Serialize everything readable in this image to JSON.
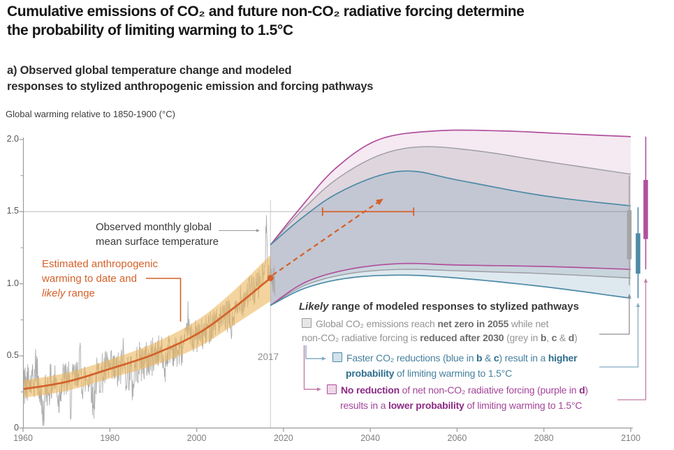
{
  "header": {
    "title_line1": "Cumulative emissions of CO₂ and future non-CO₂ radiative forcing determine",
    "title_line2": "the probability of limiting warming to 1.5°C"
  },
  "panel": {
    "label_line1": "a) Observed global temperature change and modeled",
    "label_line2": "responses to stylized anthropogenic emission and forcing pathways"
  },
  "axis_caption": "Global warming relative to 1850-1900 (°C)",
  "annotations": {
    "observed": {
      "lines": [
        [
          {
            "t": "Observed monthly global"
          }
        ],
        [
          {
            "t": "mean surface temperature"
          }
        ]
      ]
    },
    "anthropogenic": {
      "lines": [
        [
          {
            "t": "Estimated anthropogenic"
          }
        ],
        [
          {
            "t": "warming to date and"
          }
        ],
        [
          {
            "t": "likely",
            "i": 1
          },
          {
            "t": " range"
          }
        ]
      ]
    },
    "marker_label": "2017"
  },
  "legend": {
    "title": [
      {
        "t": "Likely",
        "b": 1,
        "i": 1
      },
      {
        "t": " range of modeled responses to stylized pathways",
        "b": 1
      }
    ],
    "grey_line1": [
      {
        "t": "Global CO₂ emissions reach "
      },
      {
        "t": "net zero in 2055",
        "b": 1
      },
      {
        "t": " while net"
      }
    ],
    "grey_line2": [
      {
        "t": "non-CO₂ radiative forcing is "
      },
      {
        "t": "reduced after 2030",
        "b": 1
      },
      {
        "t": " (grey in "
      },
      {
        "t": "b",
        "b": 1
      },
      {
        "t": ", "
      },
      {
        "t": "c",
        "b": 1
      },
      {
        "t": " & "
      },
      {
        "t": "d",
        "b": 1
      },
      {
        "t": ")"
      }
    ],
    "blue_line1": [
      {
        "t": "Faster CO₂ reductions (blue in "
      },
      {
        "t": "b",
        "b": 1
      },
      {
        "t": " & "
      },
      {
        "t": "c",
        "b": 1
      },
      {
        "t": ") result in a "
      },
      {
        "t": "higher",
        "b": 1
      }
    ],
    "blue_line2": [
      {
        "t": "probability",
        "b": 1
      },
      {
        "t": " of limiting warming to 1.5°C"
      }
    ],
    "purple_line1": [
      {
        "t": "No reduction",
        "b": 1
      },
      {
        "t": " of net non-CO₂ radiative forcing (purple in "
      },
      {
        "t": "d",
        "b": 1
      },
      {
        "t": ")"
      }
    ],
    "purple_line2": [
      {
        "t": "results in a "
      },
      {
        "t": "lower probability",
        "b": 1
      },
      {
        "t": " of limiting warming to 1.5°C"
      }
    ]
  },
  "colors": {
    "orange": "#d4612a",
    "wheat_fill": "#ecb75d",
    "observed_grey": "#acacac",
    "grey_path": "#9c9ca3",
    "grey_fill": "#787d87",
    "blue_path": "#4d8aa6",
    "blue_fill": "#508caa",
    "purple_path": "#b0509d",
    "purple_fill": "#b1529e",
    "axis": "#9b9b9b",
    "grid": "#bdbdbd",
    "vline": "#c9c9c9",
    "arrow_grey": "#8f8f96",
    "arrow_blue": "#85abc4",
    "arrow_pink": "#c47ba6",
    "bar_grey": "#a5a5a5",
    "bar_blue": "#4d8aa6",
    "bar_purple": "#b0509d"
  },
  "chart_data": {
    "type": "line+area",
    "title": "a) Observed global temperature change and modeled responses to stylized anthropogenic emission and forcing pathways",
    "ylabel": "Global warming relative to 1850-1900 (°C)",
    "x_range": [
      1960,
      2100
    ],
    "y_range": [
      0,
      2.0
    ],
    "x_ticks": [
      {
        "label": "1960",
        "year": 1960
      },
      {
        "label": "1980",
        "year": 1980
      },
      {
        "label": "2000",
        "year": 2000
      },
      {
        "label": "2020",
        "year": 2020
      },
      {
        "label": "2040",
        "year": 2040
      },
      {
        "label": "2060",
        "year": 2060
      },
      {
        "label": "2080",
        "year": 2080
      },
      {
        "label": "2100",
        "year": 2100
      }
    ],
    "y_ticks": [
      {
        "label": "0",
        "value": 0
      },
      {
        "label": "0.5",
        "value": 0.5
      },
      {
        "label": "1.0",
        "value": 1.0
      },
      {
        "label": "1.5",
        "value": 1.5
      },
      {
        "label": "2.0",
        "value": 2.0
      }
    ],
    "y_minor_ticks": [
      0.25,
      0.75,
      1.25,
      1.75
    ],
    "gridline_value": 1.5,
    "marker_year": 2017,
    "current_warming": {
      "year": 2017,
      "value": 1.04
    },
    "observed": {
      "trend_knots": [
        [
          1960,
          0.27
        ],
        [
          1965,
          0.29
        ],
        [
          1970,
          0.32
        ],
        [
          1975,
          0.35
        ],
        [
          1980,
          0.41
        ],
        [
          1985,
          0.45
        ],
        [
          1990,
          0.51
        ],
        [
          1995,
          0.57
        ],
        [
          2000,
          0.65
        ],
        [
          2005,
          0.73
        ],
        [
          2008,
          0.82
        ],
        [
          2013,
          0.93
        ],
        [
          2016,
          1.05
        ],
        [
          2018,
          1.02
        ]
      ],
      "interannual_amp": 0.09,
      "monthly_amp_early": 0.145,
      "monthly_amp_late": 0.115,
      "spikes": [
        {
          "year": 1963.0,
          "amp": 0.15,
          "width": 0.35
        },
        {
          "year": 1964.6,
          "amp": -0.2,
          "width": 0.4
        },
        {
          "year": 1968.2,
          "amp": -0.14,
          "width": 0.3
        },
        {
          "year": 1971.0,
          "amp": -0.16,
          "width": 0.35
        },
        {
          "year": 1973.0,
          "amp": 0.18,
          "width": 0.3
        },
        {
          "year": 1976.2,
          "amp": -0.2,
          "width": 0.35
        },
        {
          "year": 1983.0,
          "amp": 0.13,
          "width": 0.3
        },
        {
          "year": 1985.3,
          "amp": -0.12,
          "width": 0.3
        },
        {
          "year": 1992.6,
          "amp": -0.14,
          "width": 0.5
        },
        {
          "year": 1998.0,
          "amp": 0.16,
          "width": 0.25
        },
        {
          "year": 2008.0,
          "amp": -0.1,
          "width": 0.3
        },
        {
          "year": 2010.1,
          "amp": 0.1,
          "width": 0.25
        },
        {
          "year": 2016.1,
          "amp": 0.42,
          "width": 0.22
        }
      ]
    },
    "anthropogenic": {
      "median_knots": [
        [
          1960,
          0.27
        ],
        [
          1970,
          0.32
        ],
        [
          1980,
          0.41
        ],
        [
          1990,
          0.51
        ],
        [
          2000,
          0.65
        ],
        [
          2008,
          0.82
        ],
        [
          2017,
          1.04
        ]
      ],
      "halfwidth_knots": [
        [
          1960,
          0.06
        ],
        [
          1980,
          0.065
        ],
        [
          1995,
          0.08
        ],
        [
          2005,
          0.11
        ],
        [
          2017,
          0.16
        ]
      ]
    },
    "pathways": {
      "grey": {
        "description": "Global CO₂ emissions reach net zero in 2055, non-CO₂ forcing reduced after 2030",
        "top": [
          [
            2017,
            1.27
          ],
          [
            2024,
            1.5
          ],
          [
            2032,
            1.72
          ],
          [
            2042,
            1.89
          ],
          [
            2052,
            1.95
          ],
          [
            2065,
            1.92
          ],
          [
            2080,
            1.85
          ],
          [
            2100,
            1.76
          ]
        ],
        "bottom": [
          [
            2017,
            0.85
          ],
          [
            2025,
            0.99
          ],
          [
            2035,
            1.07
          ],
          [
            2047,
            1.1
          ],
          [
            2060,
            1.09
          ],
          [
            2080,
            1.07
          ],
          [
            2100,
            1.04
          ]
        ],
        "bar_2100": {
          "whisker": [
            0.99,
            1.75
          ],
          "box": [
            1.17,
            1.51
          ]
        }
      },
      "blue": {
        "description": "Faster CO₂ reductions",
        "top": [
          [
            2017,
            1.27
          ],
          [
            2024,
            1.45
          ],
          [
            2032,
            1.62
          ],
          [
            2042,
            1.75
          ],
          [
            2050,
            1.78
          ],
          [
            2060,
            1.72
          ],
          [
            2080,
            1.61
          ],
          [
            2100,
            1.54
          ]
        ],
        "bottom": [
          [
            2017,
            0.85
          ],
          [
            2025,
            0.97
          ],
          [
            2035,
            1.04
          ],
          [
            2047,
            1.06
          ],
          [
            2060,
            1.04
          ],
          [
            2080,
            0.98
          ],
          [
            2100,
            0.9
          ]
        ],
        "bar_2100": {
          "whisker": [
            0.9,
            1.53
          ],
          "box": [
            1.07,
            1.35
          ]
        }
      },
      "purple": {
        "description": "No reduction of net non-CO₂ radiative forcing",
        "top": [
          [
            2017,
            1.27
          ],
          [
            2024,
            1.53
          ],
          [
            2032,
            1.8
          ],
          [
            2042,
            2.0
          ],
          [
            2055,
            2.06
          ],
          [
            2070,
            2.06
          ],
          [
            2085,
            2.04
          ],
          [
            2100,
            2.02
          ]
        ],
        "bottom": [
          [
            2017,
            0.85
          ],
          [
            2025,
            1.01
          ],
          [
            2035,
            1.1
          ],
          [
            2047,
            1.14
          ],
          [
            2060,
            1.13
          ],
          [
            2080,
            1.12
          ],
          [
            2100,
            1.1
          ]
        ],
        "bar_2100": {
          "whisker": [
            1.1,
            2.02
          ],
          "box": [
            1.31,
            1.72
          ]
        }
      }
    },
    "trend_arrow": {
      "from": [
        2017.5,
        1.06
      ],
      "to": [
        2043,
        1.59
      ]
    },
    "range_1p5": {
      "value": 1.5,
      "year_from": 2029,
      "year_to": 2050
    }
  }
}
